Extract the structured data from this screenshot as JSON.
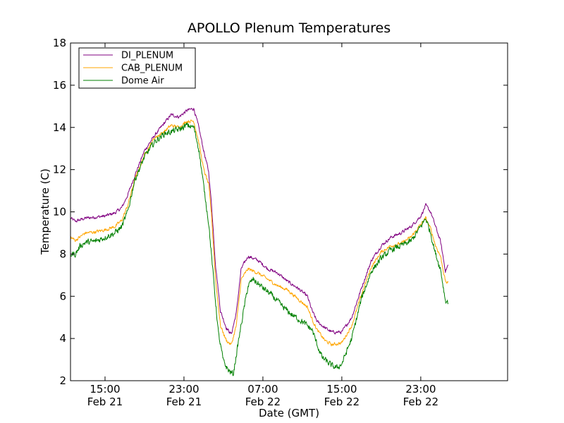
{
  "chart_data": {
    "type": "line",
    "title": "APOLLO Plenum Temperatures",
    "xlabel": "Date (GMT)",
    "ylabel": "Temperature (C)",
    "x_unit": "hours since Feb 21 00:00 GMT",
    "xlim": [
      11.5,
      55.8
    ],
    "ylim": [
      2,
      18
    ],
    "yticks": [
      2,
      4,
      6,
      8,
      10,
      12,
      14,
      16,
      18
    ],
    "xticks": [
      {
        "x": 15,
        "time": "15:00",
        "date": "Feb 21"
      },
      {
        "x": 23,
        "time": "23:00",
        "date": "Feb 21"
      },
      {
        "x": 31,
        "time": "07:00",
        "date": "Feb 22"
      },
      {
        "x": 39,
        "time": "15:00",
        "date": "Feb 22"
      },
      {
        "x": 47,
        "time": "23:00",
        "date": "Feb 22"
      }
    ],
    "legend_location": "top-left",
    "series": [
      {
        "name": "DI_PLENUM",
        "color": "#800080",
        "noise": 0.12,
        "points": [
          [
            11.5,
            9.7
          ],
          [
            12,
            9.55
          ],
          [
            13,
            9.7
          ],
          [
            14,
            9.75
          ],
          [
            15,
            9.8
          ],
          [
            16,
            9.95
          ],
          [
            16.7,
            10.2
          ],
          [
            17.3,
            10.8
          ],
          [
            18,
            11.7
          ],
          [
            19,
            12.9
          ],
          [
            20,
            13.6
          ],
          [
            21,
            14.2
          ],
          [
            21.7,
            14.6
          ],
          [
            22.5,
            14.5
          ],
          [
            23.3,
            14.8
          ],
          [
            24,
            14.9
          ],
          [
            24.5,
            14.0
          ],
          [
            25,
            12.9
          ],
          [
            25.5,
            11.9
          ],
          [
            25.8,
            10.3
          ],
          [
            26.2,
            7.5
          ],
          [
            26.7,
            5.3
          ],
          [
            27.3,
            4.5
          ],
          [
            27.8,
            4.2
          ],
          [
            28.3,
            5.2
          ],
          [
            28.8,
            7.3
          ],
          [
            29.5,
            7.9
          ],
          [
            30.5,
            7.7
          ],
          [
            31.5,
            7.3
          ],
          [
            32.5,
            7.1
          ],
          [
            33.5,
            6.7
          ],
          [
            34.5,
            6.4
          ],
          [
            35.5,
            6.0
          ],
          [
            36,
            5.3
          ],
          [
            36.5,
            4.8
          ],
          [
            37.3,
            4.5
          ],
          [
            38,
            4.3
          ],
          [
            39,
            4.3
          ],
          [
            40,
            5.0
          ],
          [
            41,
            6.4
          ],
          [
            42,
            7.7
          ],
          [
            43,
            8.4
          ],
          [
            44,
            8.8
          ],
          [
            45,
            9.0
          ],
          [
            46,
            9.3
          ],
          [
            47,
            9.8
          ],
          [
            47.5,
            10.3
          ],
          [
            48,
            10.0
          ],
          [
            48.5,
            9.3
          ],
          [
            49,
            8.6
          ],
          [
            49.5,
            7.2
          ],
          [
            49.8,
            7.5
          ]
        ]
      },
      {
        "name": "CAB_PLENUM",
        "color": "#ffa500",
        "noise": 0.12,
        "points": [
          [
            11.5,
            8.8
          ],
          [
            12,
            8.65
          ],
          [
            13,
            9.0
          ],
          [
            14,
            9.05
          ],
          [
            15,
            9.15
          ],
          [
            16,
            9.3
          ],
          [
            16.7,
            9.6
          ],
          [
            17.3,
            10.3
          ],
          [
            18,
            11.5
          ],
          [
            19,
            12.7
          ],
          [
            20,
            13.5
          ],
          [
            21,
            13.8
          ],
          [
            21.7,
            14.1
          ],
          [
            22.5,
            14.0
          ],
          [
            23.3,
            14.3
          ],
          [
            24,
            14.3
          ],
          [
            24.5,
            13.3
          ],
          [
            25,
            12.0
          ],
          [
            25.5,
            11.3
          ],
          [
            25.8,
            9.8
          ],
          [
            26.2,
            6.8
          ],
          [
            26.7,
            4.6
          ],
          [
            27.3,
            3.9
          ],
          [
            27.8,
            3.7
          ],
          [
            28.3,
            4.6
          ],
          [
            28.8,
            6.8
          ],
          [
            29.5,
            7.3
          ],
          [
            30.5,
            7.1
          ],
          [
            31.5,
            6.8
          ],
          [
            32.5,
            6.5
          ],
          [
            33.5,
            6.3
          ],
          [
            34.5,
            5.9
          ],
          [
            35.5,
            5.5
          ],
          [
            36,
            4.9
          ],
          [
            36.5,
            4.4
          ],
          [
            37.3,
            3.9
          ],
          [
            38,
            3.7
          ],
          [
            39,
            3.8
          ],
          [
            40,
            4.6
          ],
          [
            41,
            6.1
          ],
          [
            42,
            7.4
          ],
          [
            43,
            8.1
          ],
          [
            44,
            8.4
          ],
          [
            45,
            8.5
          ],
          [
            46,
            8.8
          ],
          [
            47,
            9.4
          ],
          [
            47.5,
            9.7
          ],
          [
            48,
            9.2
          ],
          [
            48.5,
            8.4
          ],
          [
            49,
            7.9
          ],
          [
            49.5,
            6.7
          ],
          [
            49.8,
            6.6
          ]
        ]
      },
      {
        "name": "Dome Air",
        "color": "#008000",
        "noise": 0.22,
        "points": [
          [
            11.5,
            8.0
          ],
          [
            12,
            8.0
          ],
          [
            12.5,
            8.4
          ],
          [
            13,
            8.55
          ],
          [
            14,
            8.6
          ],
          [
            15,
            8.8
          ],
          [
            16,
            9.0
          ],
          [
            16.7,
            9.3
          ],
          [
            17.3,
            10.0
          ],
          [
            18,
            11.5
          ],
          [
            19,
            12.6
          ],
          [
            20,
            13.3
          ],
          [
            21,
            13.7
          ],
          [
            21.7,
            13.8
          ],
          [
            22.5,
            13.9
          ],
          [
            23.3,
            14.1
          ],
          [
            24,
            14.0
          ],
          [
            24.5,
            13.0
          ],
          [
            25,
            11.2
          ],
          [
            25.5,
            9.5
          ],
          [
            26,
            6.8
          ],
          [
            26.5,
            4.2
          ],
          [
            27,
            2.9
          ],
          [
            27.5,
            2.5
          ],
          [
            28,
            2.3
          ],
          [
            28.5,
            3.8
          ],
          [
            29,
            5.2
          ],
          [
            29.5,
            6.5
          ],
          [
            30,
            6.8
          ],
          [
            31,
            6.4
          ],
          [
            32,
            6.0
          ],
          [
            33,
            5.5
          ],
          [
            34,
            5.1
          ],
          [
            35,
            4.8
          ],
          [
            36,
            4.4
          ],
          [
            36.5,
            3.7
          ],
          [
            37,
            3.1
          ],
          [
            38,
            2.7
          ],
          [
            38.5,
            2.6
          ],
          [
            39,
            2.8
          ],
          [
            40,
            4.0
          ],
          [
            41,
            5.9
          ],
          [
            42,
            7.2
          ],
          [
            43,
            7.8
          ],
          [
            44,
            8.2
          ],
          [
            45,
            8.4
          ],
          [
            46,
            8.6
          ],
          [
            47,
            9.3
          ],
          [
            47.5,
            9.7
          ],
          [
            48,
            9.0
          ],
          [
            48.5,
            8.0
          ],
          [
            49,
            7.3
          ],
          [
            49.5,
            5.8
          ],
          [
            49.8,
            5.7
          ]
        ]
      }
    ]
  }
}
